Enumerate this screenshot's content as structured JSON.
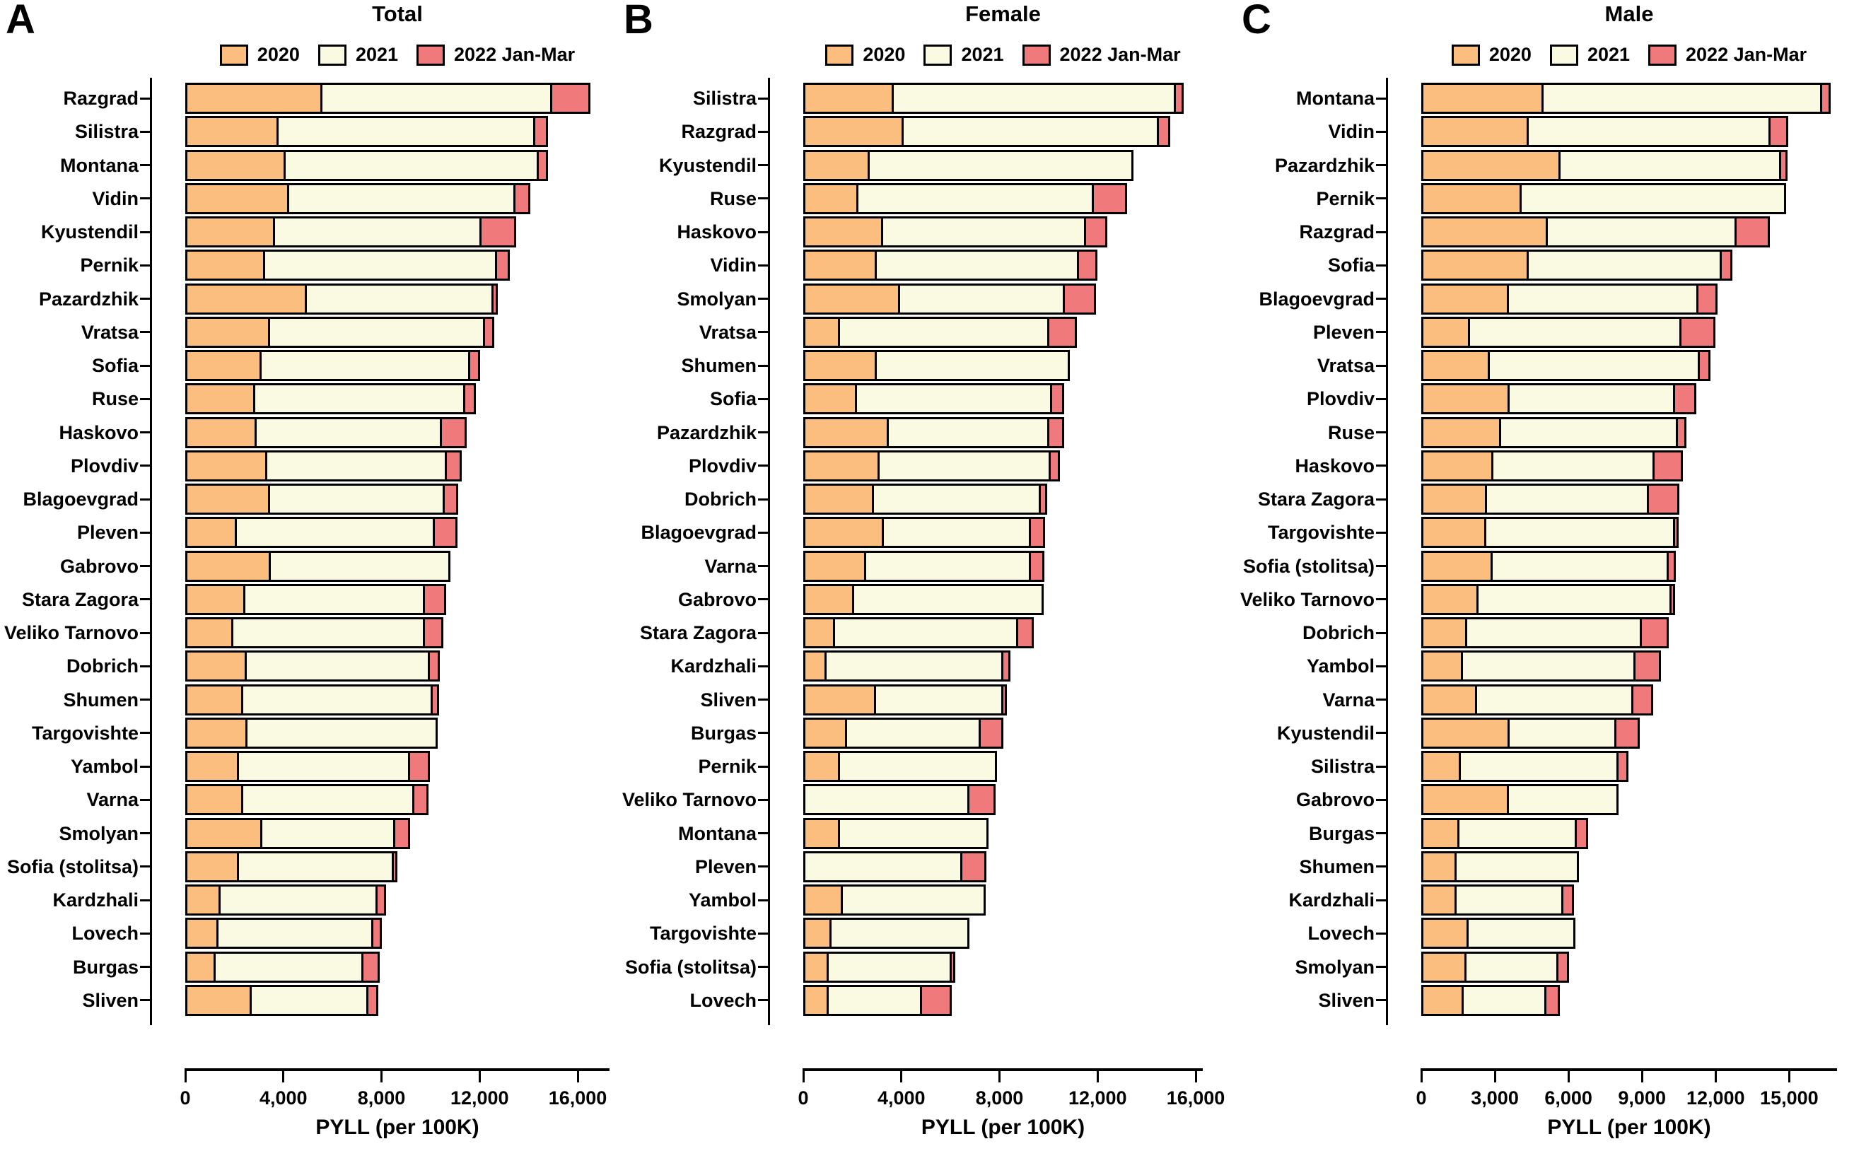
{
  "chart_data": {
    "type": "bar",
    "orientation": "horizontal-stacked",
    "series_names": [
      "2020",
      "2021",
      "2022 Jan-Mar"
    ],
    "xlabel": "PYLL (per 100K)",
    "panels": [
      {
        "letter": "A",
        "title": "Total",
        "categories": [
          "Razgrad",
          "Silistra",
          "Montana",
          "Vidin",
          "Kyustendil",
          "Pernik",
          "Pazardzhik",
          "Vratsa",
          "Sofia",
          "Ruse",
          "Haskovo",
          "Plovdiv",
          "Blagoevgrad",
          "Pleven",
          "Gabrovo",
          "Stara Zagora",
          "Veliko Tarnovo",
          "Dobrich",
          "Shumen",
          "Targovishte",
          "Yambol",
          "Varna",
          "Smolyan",
          "Sofia (stolitsa)",
          "Kardzhali",
          "Lovech",
          "Burgas",
          "Sliven"
        ],
        "series": [
          {
            "name": "2020",
            "values": [
              5600,
              3800,
              4100,
              4250,
              3650,
              3250,
              4950,
              3450,
              3100,
              2850,
              2900,
              3350,
              3450,
              2100,
              3500,
              2450,
              1950,
              2500,
              2350,
              2550,
              2200,
              2350,
              3150,
              2200,
              1450,
              1350,
              1250,
              2700
            ]
          },
          {
            "name": "2021",
            "values": [
              9450,
              10550,
              10400,
              9300,
              8500,
              9550,
              7700,
              8850,
              8600,
              8650,
              7650,
              7400,
              7200,
              8150,
              7400,
              7400,
              7900,
              7550,
              7800,
              7850,
              7050,
              7050,
              5500,
              6400,
              6500,
              6400,
              6100,
              4850
            ]
          },
          {
            "name": "2022 Jan-Mar",
            "values": [
              1650,
              600,
              450,
              700,
              1500,
              600,
              250,
              450,
              500,
              530,
              1100,
              700,
              620,
              1020,
              0,
              950,
              840,
              480,
              350,
              0,
              900,
              650,
              700,
              240,
              420,
              440,
              740,
              480
            ]
          }
        ],
        "xticks": {
          "values": [
            0,
            4000,
            8000,
            12000,
            16000
          ],
          "labels": [
            "0",
            "4,000",
            "8,000",
            "12,000",
            "16,000"
          ]
        },
        "axis_line_max": 17300
      },
      {
        "letter": "B",
        "title": "Female",
        "categories": [
          "Silistra",
          "Razgrad",
          "Kyustendil",
          "Ruse",
          "Haskovo",
          "Vidin",
          "Smolyan",
          "Vratsa",
          "Shumen",
          "Sofia",
          "Pazardzhik",
          "Plovdiv",
          "Dobrich",
          "Blagoevgrad",
          "Varna",
          "Gabrovo",
          "Stara Zagora",
          "Kardzhali",
          "Sliven",
          "Burgas",
          "Pernik",
          "Veliko Tarnovo",
          "Montana",
          "Pleven",
          "Yambol",
          "Targovishte",
          "Sofia (stolitsa)",
          "Lovech"
        ],
        "series": [
          {
            "name": "2020",
            "values": [
              3700,
              4100,
              2700,
              2250,
              3250,
              3000,
              3950,
              1500,
              3000,
              2200,
              3480,
              3100,
              2870,
              3280,
              2560,
              2070,
              1300,
              960,
              2980,
              1800,
              1500,
              0,
              1500,
              0,
              1600,
              1160,
              1040,
              1050
            ]
          },
          {
            "name": "2021",
            "values": [
              11600,
              10500,
              10850,
              9680,
              8350,
              8320,
              6800,
              8620,
              7970,
              8050,
              6640,
              7070,
              6900,
              6070,
              6790,
              7820,
              7560,
              7280,
              5270,
              5530,
              6490,
              6760,
              6140,
              6500,
              5920,
              5710,
              5110,
              3900
            ]
          },
          {
            "name": "2022 Jan-Mar",
            "values": [
              400,
              550,
              0,
              1450,
              950,
              850,
              1350,
              1220,
              0,
              580,
              690,
              460,
              350,
              660,
              640,
              0,
              730,
              380,
              240,
              1010,
              0,
              1150,
              0,
              1070,
              0,
              0,
              150,
              1300
            ]
          }
        ],
        "xticks": {
          "values": [
            0,
            4000,
            8000,
            12000,
            16000
          ],
          "labels": [
            "0",
            "4,000",
            "8,000",
            "12,000",
            "16,000"
          ]
        },
        "axis_line_max": 16300
      },
      {
        "letter": "C",
        "title": "Male",
        "categories": [
          "Montana",
          "Vidin",
          "Pazardzhik",
          "Pernik",
          "Razgrad",
          "Sofia",
          "Blagoevgrad",
          "Pleven",
          "Vratsa",
          "Plovdiv",
          "Ruse",
          "Haskovo",
          "Stara Zagora",
          "Targovishte",
          "Sofia (stolitsa)",
          "Veliko Tarnovo",
          "Dobrich",
          "Yambol",
          "Varna",
          "Kyustendil",
          "Silistra",
          "Gabrovo",
          "Burgas",
          "Shumen",
          "Kardzhali",
          "Lovech",
          "Smolyan",
          "Sliven"
        ],
        "series": [
          {
            "name": "2020",
            "values": [
              5000,
              4380,
              5690,
              4100,
              5170,
              4390,
              3570,
              2000,
              2790,
              3610,
              3250,
              2950,
              2670,
              2660,
              2920,
              2330,
              1880,
              1690,
              2290,
              3610,
              1600,
              3570,
              1550,
              1430,
              1440,
              1920,
              1850,
              1720
            ]
          },
          {
            "name": "2021",
            "values": [
              11450,
              9950,
              9070,
              10870,
              7790,
              7960,
              7820,
              8710,
              8660,
              6840,
              7280,
              6670,
              6680,
              7790,
              7250,
              7950,
              7220,
              7130,
              6450,
              4430,
              6510,
              4550,
              4870,
              5080,
              4430,
              4440,
              3820,
              3460
            ]
          },
          {
            "name": "2022 Jan-Mar",
            "values": [
              440,
              800,
              350,
              0,
              1440,
              520,
              870,
              1480,
              530,
              950,
              430,
              1230,
              1340,
              180,
              380,
              210,
              1180,
              1130,
              890,
              1030,
              490,
              0,
              540,
              0,
              530,
              0,
              530,
              620
            ]
          }
        ],
        "xticks": {
          "values": [
            0,
            3000,
            6000,
            9000,
            12000,
            15000
          ],
          "labels": [
            "0",
            "3,000",
            "6,000",
            "9,000",
            "12,000",
            "15,000"
          ]
        },
        "axis_line_max": 16950
      }
    ]
  },
  "colors": {
    "series_2020": "#FBBE7E",
    "series_2021": "#FAF9E1",
    "series_2022": "#F0797B",
    "axis": "#000000",
    "background": "#FFFFFF"
  }
}
